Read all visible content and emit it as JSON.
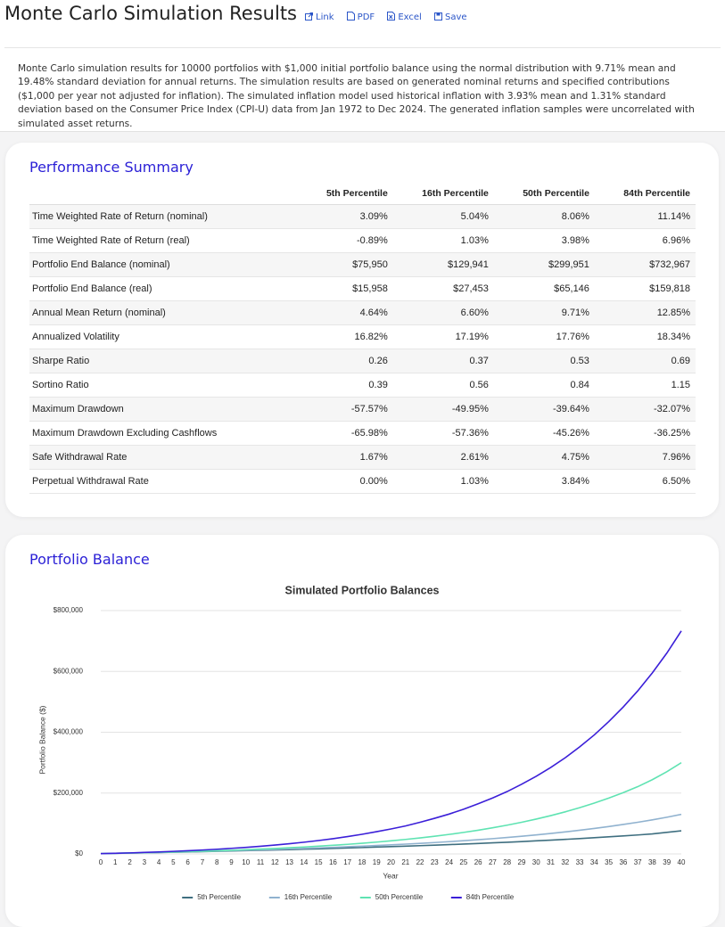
{
  "header": {
    "title": "Monte Carlo Simulation Results",
    "links": [
      "Link",
      "PDF",
      "Excel",
      "Save"
    ]
  },
  "description": "Monte Carlo simulation results for 10000 portfolios with $1,000 initial portfolio balance using the normal distribution with 9.71% mean and 19.48% standard deviation for annual returns. The simulation results are based on generated nominal returns and specified contributions ($1,000 per year not adjusted for inflation). The simulated inflation model used historical inflation with 3.93% mean and 1.31% standard deviation based on the Consumer Price Index (CPI-U) data from Jan 1972 to Dec 2024. The generated inflation samples were uncorrelated with simulated asset returns.",
  "performance_summary": {
    "title": "Performance Summary",
    "columns": [
      "5th Percentile",
      "16th Percentile",
      "50th Percentile",
      "84th Percentile"
    ],
    "rows": [
      {
        "label": "Time Weighted Rate of Return (nominal)",
        "values": [
          "3.09%",
          "5.04%",
          "8.06%",
          "11.14%"
        ]
      },
      {
        "label": "Time Weighted Rate of Return (real)",
        "values": [
          "-0.89%",
          "1.03%",
          "3.98%",
          "6.96%"
        ]
      },
      {
        "label": "Portfolio End Balance (nominal)",
        "values": [
          "$75,950",
          "$129,941",
          "$299,951",
          "$732,967"
        ]
      },
      {
        "label": "Portfolio End Balance (real)",
        "values": [
          "$15,958",
          "$27,453",
          "$65,146",
          "$159,818"
        ]
      },
      {
        "label": "Annual Mean Return (nominal)",
        "values": [
          "4.64%",
          "6.60%",
          "9.71%",
          "12.85%"
        ]
      },
      {
        "label": "Annualized Volatility",
        "values": [
          "16.82%",
          "17.19%",
          "17.76%",
          "18.34%"
        ]
      },
      {
        "label": "Sharpe Ratio",
        "values": [
          "0.26",
          "0.37",
          "0.53",
          "0.69"
        ]
      },
      {
        "label": "Sortino Ratio",
        "values": [
          "0.39",
          "0.56",
          "0.84",
          "1.15"
        ]
      },
      {
        "label": "Maximum Drawdown",
        "values": [
          "-57.57%",
          "-49.95%",
          "-39.64%",
          "-32.07%"
        ]
      },
      {
        "label": "Maximum Drawdown Excluding Cashflows",
        "values": [
          "-65.98%",
          "-57.36%",
          "-45.26%",
          "-36.25%"
        ]
      },
      {
        "label": "Safe Withdrawal Rate",
        "values": [
          "1.67%",
          "2.61%",
          "4.75%",
          "7.96%"
        ]
      },
      {
        "label": "Perpetual Withdrawal Rate",
        "values": [
          "0.00%",
          "1.03%",
          "3.84%",
          "6.50%"
        ]
      }
    ]
  },
  "balance_section": {
    "title": "Portfolio Balance"
  },
  "chart_data": {
    "type": "line",
    "title": "Simulated Portfolio Balances",
    "x_label": "Year",
    "y_label": "Portfolio Balance ($)",
    "x": [
      0,
      1,
      2,
      3,
      4,
      5,
      6,
      7,
      8,
      9,
      10,
      11,
      12,
      13,
      14,
      15,
      16,
      17,
      18,
      19,
      20,
      21,
      22,
      23,
      24,
      25,
      26,
      27,
      28,
      29,
      30,
      31,
      32,
      33,
      34,
      35,
      36,
      37,
      38,
      39,
      40
    ],
    "xlim": [
      0,
      40
    ],
    "ylim": [
      0,
      800000
    ],
    "yticks": [
      {
        "value": 0,
        "label": "$0"
      },
      {
        "value": 200000,
        "label": "$200,000"
      },
      {
        "value": 400000,
        "label": "$400,000"
      },
      {
        "value": 600000,
        "label": "$600,000"
      },
      {
        "value": 800000,
        "label": "$800,000"
      }
    ],
    "grid": true,
    "legend": "bottom",
    "series": [
      {
        "name": "5th Percentile",
        "color": "#3f6f80",
        "values": [
          1000,
          1900,
          2800,
          3700,
          4600,
          5500,
          6500,
          7500,
          8500,
          9600,
          10700,
          11800,
          13000,
          14200,
          15500,
          16800,
          18100,
          19500,
          20900,
          22400,
          23900,
          25500,
          27100,
          28800,
          30600,
          32400,
          34300,
          36300,
          38400,
          40600,
          42900,
          45300,
          47800,
          50400,
          53200,
          56100,
          59100,
          62300,
          65700,
          71000,
          76000
        ]
      },
      {
        "name": "16th Percentile",
        "color": "#90b2cf",
        "values": [
          1000,
          1900,
          2800,
          3800,
          4800,
          5900,
          7000,
          8200,
          9400,
          10700,
          12000,
          13400,
          14900,
          16500,
          18100,
          19800,
          21600,
          23500,
          25500,
          27600,
          29800,
          32200,
          34700,
          37400,
          40300,
          43400,
          46700,
          50200,
          54000,
          58100,
          62500,
          67200,
          72300,
          77800,
          83700,
          90000,
          96800,
          104100,
          112000,
          120500,
          130000
        ]
      },
      {
        "name": "50th Percentile",
        "color": "#5fe3b2",
        "values": [
          1000,
          1900,
          2900,
          4000,
          5100,
          6300,
          7600,
          9000,
          10500,
          12100,
          13900,
          15800,
          17900,
          20200,
          22700,
          25400,
          28300,
          31500,
          35000,
          38800,
          43000,
          47600,
          52600,
          58100,
          64100,
          70700,
          77900,
          85800,
          94500,
          104000,
          114400,
          125800,
          138300,
          152000,
          167000,
          183400,
          201400,
          221100,
          244000,
          270000,
          300000
        ]
      },
      {
        "name": "84th Percentile",
        "color": "#3b1fd8",
        "values": [
          1000,
          2100,
          3300,
          4800,
          6500,
          8400,
          10500,
          12800,
          15400,
          18300,
          21500,
          25000,
          29000,
          33500,
          38500,
          44000,
          50000,
          57000,
          64500,
          73000,
          82000,
          92000,
          104000,
          117000,
          131000,
          147000,
          165000,
          184000,
          205000,
          229000,
          255000,
          284000,
          316000,
          352000,
          391000,
          435000,
          483000,
          536000,
          595000,
          660000,
          733000
        ]
      }
    ]
  }
}
